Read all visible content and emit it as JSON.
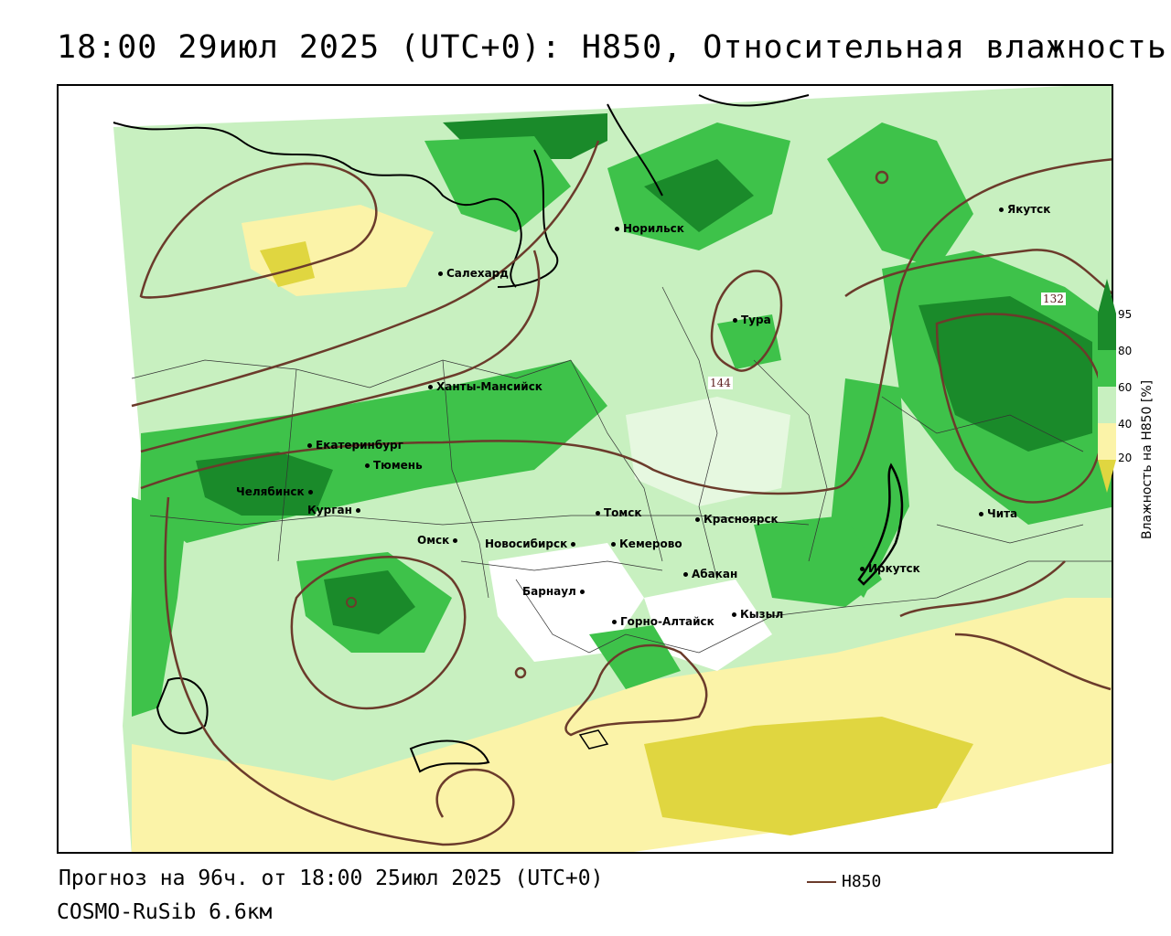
{
  "title": "18:00 29июл 2025 (UTC+0): H850, Относительная влажность",
  "footer": {
    "forecast": "Прогноз на 96ч. от 18:00 25июл 2025 (UTC+0)",
    "model": "COSMO-RuSib 6.6км",
    "line_legend": "H850"
  },
  "legend": {
    "title": "Влажность на H850 [%]",
    "ticks": [
      "95",
      "80",
      "60",
      "40",
      "20"
    ],
    "colors": {
      "c95": "#1a8a2a",
      "c80": "#3ec24a",
      "c60": "#c8f0c0",
      "c40": "#ffffff",
      "c20": "#fbf3a8",
      "c10": "#e0d640"
    }
  },
  "isolines": [
    "144",
    "132"
  ],
  "isoline_color": "#6b3b2b",
  "cities": [
    {
      "name": "Якутск"
    },
    {
      "name": "Норильск"
    },
    {
      "name": "Салехард"
    },
    {
      "name": "Тура"
    },
    {
      "name": "Ханты-Мансийск"
    },
    {
      "name": "Екатеринбург"
    },
    {
      "name": "Тюмень"
    },
    {
      "name": "Челябинск"
    },
    {
      "name": "Курган"
    },
    {
      "name": "Омск"
    },
    {
      "name": "Томск"
    },
    {
      "name": "Красноярск"
    },
    {
      "name": "Новосибирск"
    },
    {
      "name": "Кемерово"
    },
    {
      "name": "Абакан"
    },
    {
      "name": "Барнаул"
    },
    {
      "name": "Иркутск"
    },
    {
      "name": "Кызыл"
    },
    {
      "name": "Горно-Алтайск"
    },
    {
      "name": "Чита"
    }
  ]
}
